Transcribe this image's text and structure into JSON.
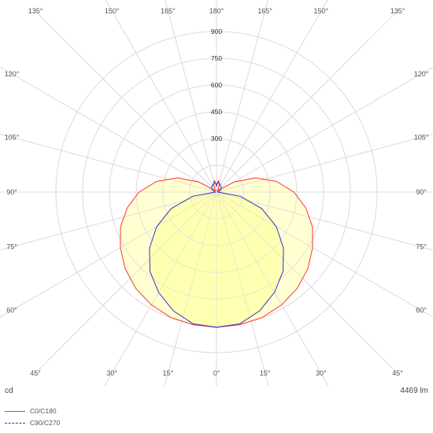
{
  "chart_data": {
    "type": "polar",
    "unit": "cd",
    "luminous_flux": "4469 lm",
    "radial_ticks": [
      150,
      300,
      450,
      600,
      750,
      900
    ],
    "radial_tick_labels": [
      "300",
      "450",
      "600",
      "750",
      "900"
    ],
    "r_max": 900,
    "spoke_step_deg": 15,
    "angle_labels": [
      {
        "deg": -135,
        "text": "135°"
      },
      {
        "deg": -150,
        "text": "150°"
      },
      {
        "deg": -165,
        "text": "165°"
      },
      {
        "deg": 180,
        "text": "180°"
      },
      {
        "deg": 165,
        "text": "165°"
      },
      {
        "deg": 150,
        "text": "150°"
      },
      {
        "deg": 135,
        "text": "135°"
      },
      {
        "deg": -120,
        "text": "120°"
      },
      {
        "deg": 120,
        "text": "120°"
      },
      {
        "deg": -105,
        "text": "105°"
      },
      {
        "deg": 105,
        "text": "105°"
      },
      {
        "deg": -90,
        "text": "90°"
      },
      {
        "deg": 90,
        "text": "90°"
      },
      {
        "deg": -75,
        "text": "75°"
      },
      {
        "deg": 75,
        "text": "75°"
      },
      {
        "deg": -60,
        "text": "60°"
      },
      {
        "deg": 60,
        "text": "60°"
      },
      {
        "deg": -45,
        "text": "45°"
      },
      {
        "deg": 45,
        "text": "45°"
      },
      {
        "deg": -30,
        "text": "30°"
      },
      {
        "deg": 30,
        "text": "30°"
      },
      {
        "deg": -15,
        "text": "15°"
      },
      {
        "deg": 15,
        "text": "15°"
      },
      {
        "deg": 0,
        "text": "0°"
      }
    ],
    "series": [
      {
        "name": "C0/C180",
        "color": "#ff3333",
        "dash": "solid",
        "angles": [
          0,
          10,
          20,
          30,
          40,
          50,
          60,
          70,
          80,
          90,
          100,
          110,
          120,
          130,
          140,
          150,
          160,
          170,
          175,
          180
        ],
        "values": [
          758,
          755,
          748,
          730,
          704,
          668,
          622,
          573,
          508,
          434,
          342,
          233,
          114,
          20,
          5,
          20,
          50,
          65,
          50,
          35
        ]
      },
      {
        "name": "C90/C270",
        "color": "#3333cc",
        "dash": "dashed",
        "angles": [
          0,
          10,
          20,
          30,
          40,
          50,
          60,
          70,
          80,
          90,
          100,
          110,
          120,
          130,
          140,
          150,
          160,
          170,
          175,
          180
        ],
        "values": [
          758,
          750,
          708,
          649,
          580,
          490,
          387,
          270,
          135,
          8,
          10,
          20,
          28,
          35,
          40,
          45,
          50,
          55,
          48,
          35
        ]
      }
    ],
    "fill_color": "#ffff99",
    "grid": true
  },
  "footer": {
    "unit": "cd",
    "flux": "4469 lm"
  },
  "legend": {
    "items": [
      {
        "label": "C0/C180",
        "color": "#ff3333",
        "style": "solid"
      },
      {
        "label": "C90/C270",
        "color": "#3333cc",
        "style": "dashed"
      }
    ]
  }
}
